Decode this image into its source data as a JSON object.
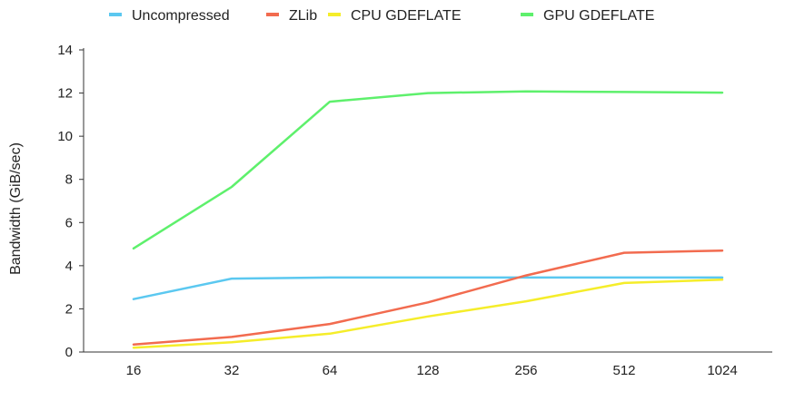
{
  "chart_data": {
    "type": "line",
    "title": "",
    "xlabel": "",
    "ylabel": "Bandwidth (GiB/sec)",
    "categories": [
      "16",
      "32",
      "64",
      "128",
      "256",
      "512",
      "1024"
    ],
    "ylim": [
      0,
      14
    ],
    "yticks": [
      0,
      2,
      4,
      6,
      8,
      10,
      12,
      14
    ],
    "grid": false,
    "legend_position": "top-center",
    "series": [
      {
        "name": "Uncompressed",
        "color": "#5bc8f0",
        "values": [
          2.45,
          3.4,
          3.45,
          3.45,
          3.45,
          3.45,
          3.45
        ]
      },
      {
        "name": "ZLib",
        "color": "#f26b4f",
        "values": [
          0.35,
          0.7,
          1.3,
          2.3,
          3.55,
          4.6,
          4.7
        ]
      },
      {
        "name": "CPU GDEFLATE",
        "color": "#f5ed2a",
        "values": [
          0.2,
          0.45,
          0.85,
          1.65,
          2.35,
          3.2,
          3.35
        ]
      },
      {
        "name": "GPU GDEFLATE",
        "color": "#5ef06c",
        "values": [
          4.8,
          7.65,
          11.6,
          12.0,
          12.08,
          12.05,
          12.02
        ]
      }
    ]
  }
}
